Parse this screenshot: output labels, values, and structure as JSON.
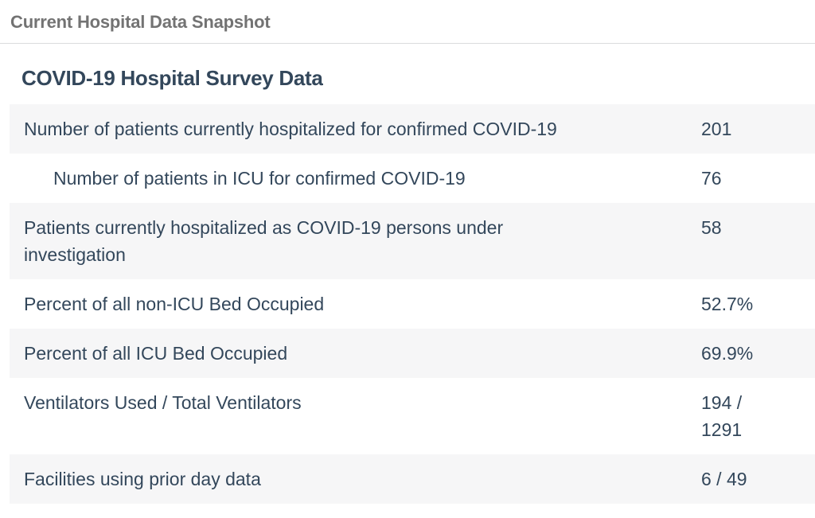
{
  "page": {
    "header": "Current Hospital Data Snapshot",
    "title": "COVID-19 Hospital Survey Data"
  },
  "table": {
    "rows": [
      {
        "label": "Number of patients currently hospitalized for confirmed COVID-19",
        "value": "201",
        "indent": false,
        "striped": true
      },
      {
        "label": "Number of patients in ICU for confirmed COVID-19",
        "value": "76",
        "indent": true,
        "striped": false
      },
      {
        "label": "Patients currently hospitalized as COVID-19 persons under investigation",
        "value": "58",
        "indent": false,
        "striped": true
      },
      {
        "label": "Percent of all non-ICU Bed Occupied",
        "value": "52.7%",
        "indent": false,
        "striped": false
      },
      {
        "label": "Percent of all ICU Bed Occupied",
        "value": "69.9%",
        "indent": false,
        "striped": true
      },
      {
        "label": "Ventilators Used / Total Ventilators",
        "value": "194 / 1291",
        "indent": false,
        "striped": false
      },
      {
        "label": "Facilities using prior day data",
        "value": "6 / 49",
        "indent": false,
        "striped": true
      }
    ]
  },
  "colors": {
    "text_navy": "#33475b",
    "header_gray": "#737373",
    "stripe": "#f6f6f7",
    "divider": "#dadcdd"
  }
}
